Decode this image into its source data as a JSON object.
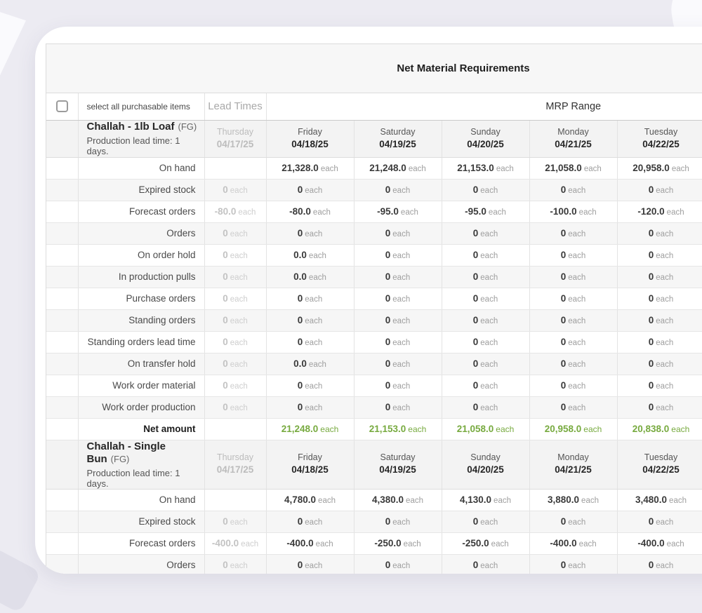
{
  "colors": {
    "net_amount_green": "#77aa3f"
  },
  "table": {
    "title": "Net Material Requirements",
    "select_all_label": "select all purchasable items",
    "lead_times_label": "Lead Times",
    "mrp_range_label": "MRP Range",
    "unit": "each",
    "lead_date": {
      "day": "Thursday",
      "date": "04/17/25"
    },
    "date_columns": [
      {
        "day": "Friday",
        "date": "04/18/25"
      },
      {
        "day": "Saturday",
        "date": "04/19/25"
      },
      {
        "day": "Sunday",
        "date": "04/20/25"
      },
      {
        "day": "Monday",
        "date": "04/21/25"
      },
      {
        "day": "Tuesday",
        "date": "04/22/25"
      }
    ],
    "items": [
      {
        "name": "Challah - 1lb Loaf",
        "grade": "(FG)",
        "subtitle": "Production lead time: 1 days.",
        "rows": [
          {
            "label": "On hand",
            "lead": null,
            "values": [
              "21,328.0",
              "21,248.0",
              "21,153.0",
              "21,058.0",
              "20,958.0"
            ]
          },
          {
            "label": "Expired stock",
            "lead": "0",
            "values": [
              "0",
              "0",
              "0",
              "0",
              "0"
            ]
          },
          {
            "label": "Forecast orders",
            "lead": "-80.0",
            "values": [
              "-80.0",
              "-95.0",
              "-95.0",
              "-100.0",
              "-120.0"
            ]
          },
          {
            "label": "Orders",
            "lead": "0",
            "values": [
              "0",
              "0",
              "0",
              "0",
              "0"
            ]
          },
          {
            "label": "On order hold",
            "lead": "0",
            "values": [
              "0.0",
              "0",
              "0",
              "0",
              "0"
            ]
          },
          {
            "label": "In production pulls",
            "lead": "0",
            "values": [
              "0.0",
              "0",
              "0",
              "0",
              "0"
            ]
          },
          {
            "label": "Purchase orders",
            "lead": "0",
            "values": [
              "0",
              "0",
              "0",
              "0",
              "0"
            ]
          },
          {
            "label": "Standing orders",
            "lead": "0",
            "values": [
              "0",
              "0",
              "0",
              "0",
              "0"
            ]
          },
          {
            "label": "Standing orders lead time",
            "lead": "0",
            "values": [
              "0",
              "0",
              "0",
              "0",
              "0"
            ]
          },
          {
            "label": "On transfer hold",
            "lead": "0",
            "values": [
              "0.0",
              "0",
              "0",
              "0",
              "0"
            ]
          },
          {
            "label": "Work order material",
            "lead": "0",
            "values": [
              "0",
              "0",
              "0",
              "0",
              "0"
            ]
          },
          {
            "label": "Work order production",
            "lead": "0",
            "values": [
              "0",
              "0",
              "0",
              "0",
              "0"
            ]
          },
          {
            "label": "Net amount",
            "net": true,
            "lead": null,
            "values": [
              "21,248.0",
              "21,153.0",
              "21,058.0",
              "20,958.0",
              "20,838.0"
            ]
          }
        ]
      },
      {
        "name": "Challah - Single Bun",
        "grade": "(FG)",
        "subtitle": "Production lead time: 1 days.",
        "rows": [
          {
            "label": "On hand",
            "lead": null,
            "values": [
              "4,780.0",
              "4,380.0",
              "4,130.0",
              "3,880.0",
              "3,480.0"
            ]
          },
          {
            "label": "Expired stock",
            "lead": "0",
            "values": [
              "0",
              "0",
              "0",
              "0",
              "0"
            ]
          },
          {
            "label": "Forecast orders",
            "lead": "-400.0",
            "values": [
              "-400.0",
              "-250.0",
              "-250.0",
              "-400.0",
              "-400.0"
            ]
          },
          {
            "label": "Orders",
            "lead": "0",
            "values": [
              "0",
              "0",
              "0",
              "0",
              "0"
            ]
          }
        ]
      }
    ]
  }
}
